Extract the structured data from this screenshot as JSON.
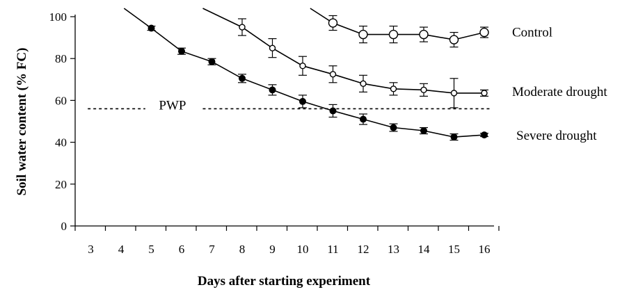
{
  "chart_data": {
    "type": "line",
    "xlabel": "Days after starting experiment",
    "ylabel": "Soil water content (% FC)",
    "x_categories": [
      3,
      4,
      5,
      6,
      7,
      8,
      9,
      10,
      11,
      12,
      13,
      14,
      15,
      16
    ],
    "y_ticks": [
      0,
      20,
      40,
      60,
      80,
      100
    ],
    "ylim": [
      0,
      100
    ],
    "grid": false,
    "series": [
      {
        "name": "Control",
        "marker": "large-open-circle",
        "x": [
          11,
          12,
          13,
          14,
          15,
          16
        ],
        "y": [
          97,
          91.5,
          91.5,
          91.5,
          89,
          92.5
        ],
        "err": [
          3.5,
          4,
          4,
          3.5,
          3.5,
          2.5
        ],
        "line_from": {
          "x": 10.25,
          "y": 104
        }
      },
      {
        "name": "Moderate drought",
        "marker": "small-open-circle",
        "x": [
          8,
          9,
          10,
          11,
          12,
          13,
          14,
          15,
          16
        ],
        "y": [
          95,
          85,
          76.5,
          72.5,
          68,
          65.5,
          65,
          63.5,
          63.5
        ],
        "err": [
          4,
          4.5,
          4.5,
          4,
          4,
          3,
          3,
          7,
          1.5
        ],
        "line_from": {
          "x": 6.7,
          "y": 104
        }
      },
      {
        "name": "Severe drought",
        "marker": "filled-circle",
        "x": [
          5,
          6,
          7,
          8,
          9,
          10,
          11,
          12,
          13,
          14,
          15,
          16
        ],
        "y": [
          94.5,
          83.5,
          78.5,
          70.5,
          65,
          59.5,
          55,
          51,
          47,
          45.5,
          42.5,
          43.5
        ],
        "err": [
          1,
          1.5,
          1.5,
          2,
          2.5,
          3,
          3,
          2.5,
          1.8,
          1.5,
          1.5,
          0.8
        ],
        "line_from": {
          "x": 4.1,
          "y": 104
        }
      }
    ],
    "reference_line": {
      "label": "PWP",
      "y": 56,
      "segments": [
        [
          2.9,
          4.8
        ],
        [
          6.7,
          16.2
        ]
      ]
    }
  }
}
